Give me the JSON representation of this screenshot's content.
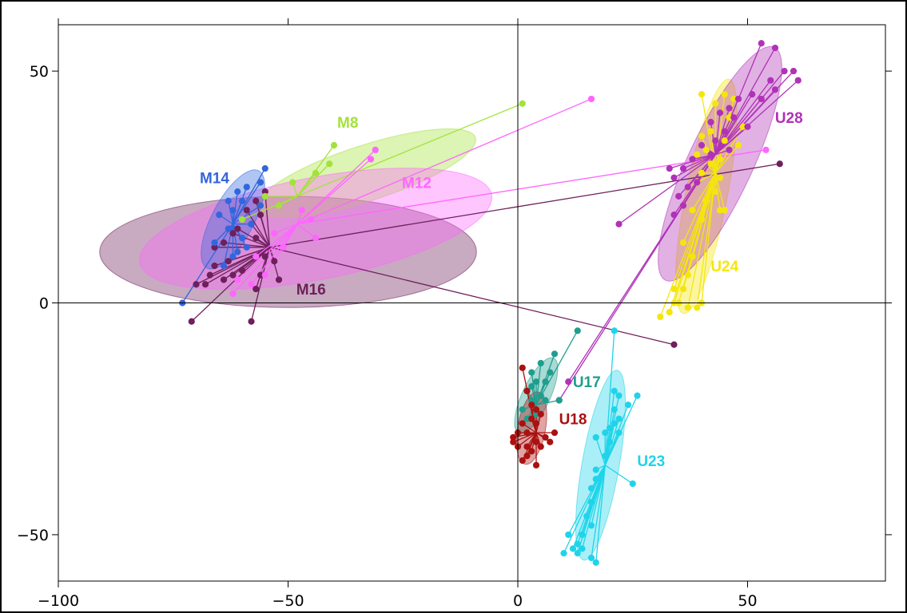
{
  "chart_data": {
    "type": "scatter",
    "title": "",
    "xlabel": "",
    "ylabel": "",
    "xlim": [
      -100,
      80
    ],
    "ylim": [
      -60,
      60
    ],
    "x_ticks": [
      -100,
      -50,
      0,
      50
    ],
    "y_ticks": [
      -50,
      0,
      50
    ],
    "x_tick_labels": [
      "−100",
      "−50",
      "0",
      "50"
    ],
    "y_tick_labels": [
      "−50",
      "0",
      "50"
    ],
    "grid": false,
    "zero_lines": true,
    "groups": [
      {
        "label": "M8",
        "color": "#a3e23a",
        "label_at": [
          -37,
          39
        ],
        "centroid": [
          -48,
          23
        ],
        "ellipse": {
          "cx": -33,
          "cy": 28,
          "rx": 25,
          "ry": 6,
          "angle": 18
        },
        "points": [
          [
            -40,
            34
          ],
          [
            -41,
            30
          ],
          [
            -49,
            26
          ],
          [
            -52,
            21
          ],
          [
            -60,
            18
          ],
          [
            -55,
            23
          ],
          [
            -44,
            28
          ],
          [
            1,
            43
          ]
        ]
      },
      {
        "label": "M12",
        "color": "#ff66ff",
        "label_at": [
          -22,
          26
        ],
        "centroid": [
          -48,
          17
        ],
        "ellipse": {
          "cx": -44,
          "cy": 16,
          "rx": 39,
          "ry": 11,
          "angle": 11
        },
        "points": [
          [
            -31,
            33
          ],
          [
            -32,
            31
          ],
          [
            16,
            44
          ],
          [
            54,
            33
          ],
          [
            -57,
            10
          ],
          [
            -55,
            6
          ],
          [
            -61,
            5
          ],
          [
            -62,
            2
          ],
          [
            -58,
            4
          ],
          [
            -51,
            12
          ],
          [
            -53,
            15
          ],
          [
            -45,
            18
          ],
          [
            -47,
            20
          ],
          [
            -44,
            14
          ]
        ]
      },
      {
        "label": "M14",
        "color": "#3366dd",
        "label_at": [
          -66,
          27
        ],
        "centroid": [
          -62,
          17
        ],
        "ellipse": {
          "cx": -62,
          "cy": 18,
          "rx": 12,
          "ry": 4.5,
          "angle": 62
        },
        "points": [
          [
            -55,
            29
          ],
          [
            -56,
            26
          ],
          [
            -59,
            25
          ],
          [
            -61,
            24
          ],
          [
            -60,
            22
          ],
          [
            -63,
            22
          ],
          [
            -62,
            20
          ],
          [
            -65,
            19
          ],
          [
            -63,
            16
          ],
          [
            -58,
            17
          ],
          [
            -60,
            14
          ],
          [
            -59,
            12
          ],
          [
            -61,
            11
          ],
          [
            -66,
            13
          ],
          [
            -64,
            8
          ],
          [
            -62,
            10
          ],
          [
            -73,
            0
          ],
          [
            -56,
            21
          ]
        ]
      },
      {
        "label": "M16",
        "color": "#6e1f5c",
        "label_at": [
          -45,
          3
        ],
        "centroid": [
          -54,
          12
        ],
        "ellipse": {
          "cx": -50,
          "cy": 11,
          "rx": 41,
          "ry": 12,
          "angle": 0
        },
        "points": [
          [
            -55,
            24
          ],
          [
            -57,
            22
          ],
          [
            -59,
            20
          ],
          [
            -56,
            19
          ],
          [
            -58,
            17
          ],
          [
            -61,
            16
          ],
          [
            -57,
            14
          ],
          [
            -62,
            15
          ],
          [
            -64,
            13
          ],
          [
            -66,
            12
          ],
          [
            -63,
            9
          ],
          [
            -66,
            8
          ],
          [
            -67,
            6
          ],
          [
            -68,
            4
          ],
          [
            -70,
            4
          ],
          [
            -64,
            5
          ],
          [
            -62,
            6
          ],
          [
            -60,
            7
          ],
          [
            -56,
            6
          ],
          [
            -52,
            5
          ],
          [
            -57,
            3
          ],
          [
            -71,
            -4
          ],
          [
            -58,
            -4
          ],
          [
            57,
            30
          ],
          [
            34,
            -9
          ],
          [
            -55,
            10
          ],
          [
            -53,
            9
          ]
        ]
      },
      {
        "label": "U17",
        "color": "#1f9e8e",
        "label_at": [
          15,
          -17
        ],
        "centroid": [
          4,
          -22
        ],
        "ellipse": {
          "cx": 4,
          "cy": -20,
          "rx": 9,
          "ry": 3,
          "angle": 65
        },
        "points": [
          [
            13,
            -6
          ],
          [
            8,
            -11
          ],
          [
            5,
            -13
          ],
          [
            7,
            -15
          ],
          [
            6,
            -17
          ],
          [
            4,
            -17
          ],
          [
            3,
            -18
          ],
          [
            2,
            -19
          ],
          [
            5,
            -20
          ],
          [
            3,
            -21
          ],
          [
            1,
            -23
          ],
          [
            2,
            -25
          ],
          [
            4,
            -24
          ],
          [
            6,
            -21
          ],
          [
            9,
            -21
          ],
          [
            3,
            -15
          ]
        ]
      },
      {
        "label": "U18",
        "color": "#aa1111",
        "label_at": [
          12,
          -25
        ],
        "centroid": [
          4,
          -28
        ],
        "ellipse": {
          "cx": 3,
          "cy": -27,
          "rx": 8,
          "ry": 3,
          "angle": 80
        },
        "points": [
          [
            1,
            -14
          ],
          [
            2,
            -19
          ],
          [
            3,
            -22
          ],
          [
            4,
            -23
          ],
          [
            5,
            -24
          ],
          [
            3,
            -25
          ],
          [
            4,
            -26
          ],
          [
            1,
            -26
          ],
          [
            2,
            -28
          ],
          [
            0,
            -28
          ],
          [
            -1,
            -29
          ],
          [
            -1,
            -30
          ],
          [
            2,
            -31
          ],
          [
            4,
            -30
          ],
          [
            5,
            -31
          ],
          [
            7,
            -30
          ],
          [
            6,
            -29
          ],
          [
            8,
            -28
          ],
          [
            3,
            -32
          ],
          [
            2,
            -33
          ],
          [
            1,
            -34
          ],
          [
            4,
            -35
          ],
          [
            0,
            -31
          ]
        ]
      },
      {
        "label": "U23",
        "color": "#1fd4ea",
        "label_at": [
          29,
          -34
        ],
        "centroid": [
          19,
          -35
        ],
        "ellipse": {
          "cx": 18,
          "cy": -35,
          "rx": 21,
          "ry": 4,
          "angle": 80
        },
        "points": [
          [
            21,
            -6
          ],
          [
            21,
            -19
          ],
          [
            22,
            -20
          ],
          [
            26,
            -20
          ],
          [
            24,
            -22
          ],
          [
            21,
            -23
          ],
          [
            22,
            -25
          ],
          [
            21,
            -26
          ],
          [
            20,
            -27
          ],
          [
            19,
            -28
          ],
          [
            22,
            -28
          ],
          [
            17,
            -29
          ],
          [
            20,
            -30
          ],
          [
            25,
            -39
          ],
          [
            19,
            -33
          ],
          [
            17,
            -36
          ],
          [
            17,
            -38
          ],
          [
            16,
            -40
          ],
          [
            16,
            -43
          ],
          [
            15,
            -46
          ],
          [
            16,
            -48
          ],
          [
            14,
            -50
          ],
          [
            13,
            -52
          ],
          [
            11,
            -50
          ],
          [
            12,
            -53
          ],
          [
            10,
            -54
          ],
          [
            13,
            -54
          ],
          [
            14,
            -53
          ],
          [
            16,
            -55
          ],
          [
            17,
            -56
          ]
        ]
      },
      {
        "label": "U24",
        "color": "#f5e60a",
        "label_at": [
          45,
          8
        ],
        "centroid": [
          43,
          28
        ],
        "ellipse": {
          "cx": 41,
          "cy": 23,
          "rx": 26,
          "ry": 4.5,
          "angle": 79
        },
        "points": [
          [
            40,
            45
          ],
          [
            45,
            45
          ],
          [
            47,
            44
          ],
          [
            43,
            43
          ],
          [
            46,
            40
          ],
          [
            49,
            38
          ],
          [
            42,
            37
          ],
          [
            40,
            36
          ],
          [
            45,
            35
          ],
          [
            48,
            34
          ],
          [
            41,
            33
          ],
          [
            44,
            31
          ],
          [
            39,
            32
          ],
          [
            42,
            30
          ],
          [
            40,
            28
          ],
          [
            44,
            27
          ],
          [
            39,
            26
          ],
          [
            43,
            24
          ],
          [
            41,
            22
          ],
          [
            38,
            20
          ],
          [
            40,
            18
          ],
          [
            45,
            20
          ],
          [
            36,
            13
          ],
          [
            38,
            10
          ],
          [
            37,
            6
          ],
          [
            34,
            3
          ],
          [
            36,
            3
          ],
          [
            35,
            0
          ],
          [
            37,
            -1
          ],
          [
            39,
            -1
          ],
          [
            40,
            0
          ],
          [
            34,
            0
          ],
          [
            31,
            -3
          ],
          [
            33,
            -2
          ],
          [
            44,
            20
          ]
        ]
      },
      {
        "label": "U28",
        "color": "#b032b8",
        "label_at": [
          59,
          40
        ],
        "centroid": [
          43,
          32
        ],
        "ellipse": {
          "cx": 44,
          "cy": 30,
          "rx": 28,
          "ry": 7,
          "angle": 65
        },
        "points": [
          [
            53,
            56
          ],
          [
            56,
            55
          ],
          [
            58,
            50
          ],
          [
            60,
            50
          ],
          [
            61,
            48
          ],
          [
            55,
            48
          ],
          [
            56,
            46
          ],
          [
            51,
            45
          ],
          [
            53,
            44
          ],
          [
            48,
            44
          ],
          [
            46,
            42
          ],
          [
            44,
            41
          ],
          [
            42,
            39
          ],
          [
            47,
            40
          ],
          [
            50,
            38
          ],
          [
            45,
            37
          ],
          [
            43,
            35
          ],
          [
            40,
            34
          ],
          [
            46,
            33
          ],
          [
            42,
            32
          ],
          [
            38,
            31
          ],
          [
            36,
            29
          ],
          [
            34,
            27
          ],
          [
            37,
            25
          ],
          [
            35,
            23
          ],
          [
            36,
            21
          ],
          [
            34,
            19
          ],
          [
            22,
            17
          ],
          [
            11,
            -17
          ],
          [
            9,
            -21
          ],
          [
            39,
            26
          ],
          [
            33,
            29
          ]
        ]
      }
    ]
  }
}
